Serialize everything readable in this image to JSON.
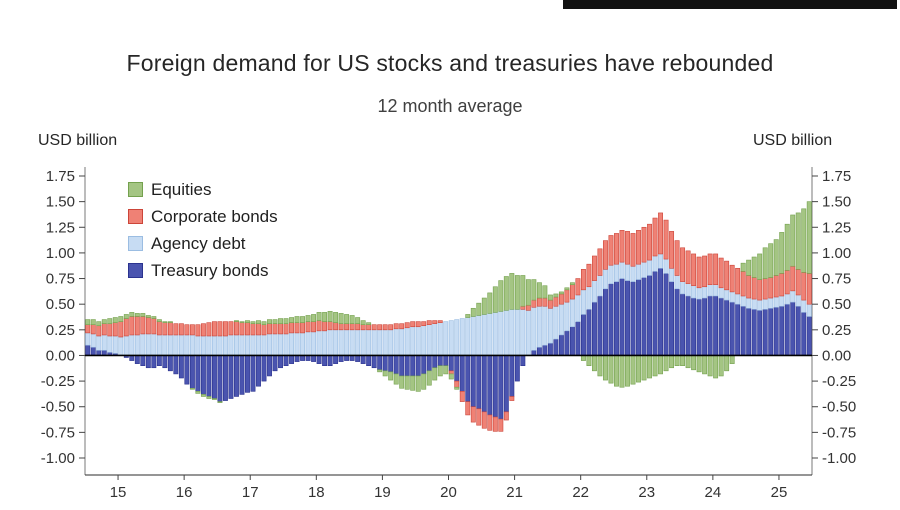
{
  "chart_data": {
    "type": "bar",
    "stacked": true,
    "title": "Foreign demand for US stocks and treasuries have rebounded",
    "subtitle": "12 month average",
    "ylabel_left": "USD billion",
    "ylabel_right": "USD billion",
    "ylim": [
      -1.0,
      1.75
    ],
    "ytick_step": 0.25,
    "grid": false,
    "zero_line": true,
    "zero_line_color": "#000000",
    "legend_position": "top-left",
    "x_start": "2014-07",
    "x_end": "2025-06",
    "frequency": "monthly",
    "x_range_decimal": [
      2014.5,
      2025.5
    ],
    "xtick_years": [
      2015,
      2016,
      2017,
      2018,
      2019,
      2020,
      2021,
      2022,
      2023,
      2024,
      2025
    ],
    "xtick_labels": [
      "15",
      "16",
      "17",
      "18",
      "19",
      "20",
      "21",
      "22",
      "23",
      "24",
      "25"
    ],
    "stack_order": [
      "Treasury bonds",
      "Agency debt",
      "Corporate bonds",
      "Equities"
    ],
    "series": [
      {
        "name": "Equities",
        "fill": "#a4c583",
        "stroke": "#74a14e",
        "values": [
          0.05,
          0.05,
          0.04,
          0.04,
          0.05,
          0.05,
          0.05,
          0.04,
          0.04,
          0.03,
          0.03,
          0.02,
          0.02,
          0.02,
          0.01,
          0.01,
          0.0,
          0.0,
          0.0,
          -0.01,
          -0.02,
          -0.02,
          -0.02,
          -0.01,
          -0.01,
          0.0,
          0.0,
          0.01,
          0.01,
          0.02,
          0.02,
          0.03,
          0.03,
          0.04,
          0.04,
          0.05,
          0.05,
          0.05,
          0.06,
          0.06,
          0.06,
          0.07,
          0.08,
          0.09,
          0.1,
          0.1,
          0.1,
          0.09,
          0.08,
          0.06,
          0.04,
          0.02,
          0.0,
          -0.02,
          -0.05,
          -0.08,
          -0.1,
          -0.12,
          -0.13,
          -0.14,
          -0.15,
          -0.15,
          -0.14,
          -0.12,
          -0.1,
          -0.08,
          -0.05,
          -0.02,
          0.0,
          0.03,
          0.08,
          0.12,
          0.16,
          0.2,
          0.25,
          0.3,
          0.33,
          0.35,
          0.33,
          0.3,
          0.25,
          0.2,
          0.15,
          0.12,
          0.05,
          0.03,
          0.02,
          0.02,
          0.02,
          0.0,
          -0.05,
          -0.1,
          -0.15,
          -0.2,
          -0.24,
          -0.27,
          -0.3,
          -0.31,
          -0.3,
          -0.28,
          -0.26,
          -0.24,
          -0.22,
          -0.2,
          -0.18,
          -0.15,
          -0.12,
          -0.1,
          -0.1,
          -0.12,
          -0.14,
          -0.16,
          -0.18,
          -0.2,
          -0.22,
          -0.2,
          -0.15,
          -0.08,
          0.0,
          0.08,
          0.15,
          0.2,
          0.25,
          0.3,
          0.33,
          0.35,
          0.4,
          0.45,
          0.5,
          0.55,
          0.62,
          0.7
        ]
      },
      {
        "name": "Corporate bonds",
        "fill": "#ef8175",
        "stroke": "#cc4539",
        "values": [
          0.08,
          0.09,
          0.1,
          0.11,
          0.12,
          0.13,
          0.15,
          0.17,
          0.18,
          0.18,
          0.17,
          0.16,
          0.15,
          0.13,
          0.12,
          0.12,
          0.11,
          0.11,
          0.1,
          0.1,
          0.11,
          0.12,
          0.13,
          0.14,
          0.14,
          0.14,
          0.13,
          0.13,
          0.12,
          0.12,
          0.11,
          0.11,
          0.1,
          0.1,
          0.1,
          0.1,
          0.1,
          0.1,
          0.1,
          0.1,
          0.1,
          0.1,
          0.1,
          0.09,
          0.08,
          0.07,
          0.06,
          0.06,
          0.06,
          0.06,
          0.05,
          0.05,
          0.05,
          0.05,
          0.05,
          0.05,
          0.05,
          0.05,
          0.05,
          0.05,
          0.05,
          0.04,
          0.04,
          0.03,
          0.02,
          0.0,
          -0.03,
          -0.06,
          -0.1,
          -0.13,
          -0.15,
          -0.16,
          -0.16,
          -0.15,
          -0.14,
          -0.12,
          -0.08,
          -0.04,
          0.0,
          0.03,
          0.05,
          0.07,
          0.08,
          0.08,
          0.08,
          0.09,
          0.1,
          0.12,
          0.14,
          0.16,
          0.2,
          0.22,
          0.24,
          0.26,
          0.28,
          0.29,
          0.3,
          0.31,
          0.32,
          0.32,
          0.33,
          0.34,
          0.35,
          0.37,
          0.4,
          0.38,
          0.36,
          0.34,
          0.33,
          0.32,
          0.31,
          0.3,
          0.3,
          0.3,
          0.3,
          0.29,
          0.28,
          0.26,
          0.25,
          0.24,
          0.22,
          0.21,
          0.2,
          0.2,
          0.2,
          0.21,
          0.22,
          0.23,
          0.24,
          0.25,
          0.27,
          0.3
        ]
      },
      {
        "name": "Agency debt",
        "fill": "#c7dcf3",
        "stroke": "#9bbde2",
        "values": [
          0.12,
          0.13,
          0.14,
          0.15,
          0.16,
          0.17,
          0.18,
          0.19,
          0.2,
          0.2,
          0.21,
          0.21,
          0.21,
          0.2,
          0.2,
          0.2,
          0.2,
          0.2,
          0.2,
          0.2,
          0.19,
          0.19,
          0.19,
          0.19,
          0.19,
          0.19,
          0.2,
          0.2,
          0.2,
          0.2,
          0.2,
          0.2,
          0.2,
          0.21,
          0.21,
          0.21,
          0.21,
          0.22,
          0.22,
          0.22,
          0.23,
          0.23,
          0.24,
          0.24,
          0.25,
          0.25,
          0.25,
          0.25,
          0.25,
          0.25,
          0.25,
          0.25,
          0.25,
          0.25,
          0.25,
          0.25,
          0.26,
          0.26,
          0.27,
          0.28,
          0.28,
          0.29,
          0.3,
          0.31,
          0.32,
          0.33,
          0.34,
          0.35,
          0.36,
          0.37,
          0.38,
          0.39,
          0.4,
          0.41,
          0.42,
          0.43,
          0.44,
          0.45,
          0.45,
          0.45,
          0.44,
          0.42,
          0.4,
          0.38,
          0.34,
          0.32,
          0.3,
          0.28,
          0.27,
          0.26,
          0.24,
          0.22,
          0.21,
          0.2,
          0.19,
          0.18,
          0.17,
          0.16,
          0.16,
          0.15,
          0.15,
          0.15,
          0.15,
          0.15,
          0.14,
          0.14,
          0.13,
          0.13,
          0.12,
          0.12,
          0.12,
          0.11,
          0.11,
          0.11,
          0.11,
          0.1,
          0.1,
          0.1,
          0.1,
          0.1,
          0.1,
          0.1,
          0.1,
          0.1,
          0.1,
          0.1,
          0.1,
          0.1,
          0.11,
          0.11,
          0.12,
          0.12
        ]
      },
      {
        "name": "Treasury bonds",
        "fill": "#4a54af",
        "stroke": "#2b338f",
        "values": [
          0.1,
          0.08,
          0.05,
          0.05,
          0.03,
          0.02,
          0.0,
          -0.02,
          -0.05,
          -0.08,
          -0.1,
          -0.12,
          -0.12,
          -0.1,
          -0.12,
          -0.15,
          -0.18,
          -0.22,
          -0.28,
          -0.32,
          -0.35,
          -0.38,
          -0.4,
          -0.42,
          -0.45,
          -0.44,
          -0.42,
          -0.4,
          -0.38,
          -0.36,
          -0.35,
          -0.3,
          -0.25,
          -0.2,
          -0.15,
          -0.12,
          -0.1,
          -0.08,
          -0.06,
          -0.05,
          -0.05,
          -0.06,
          -0.08,
          -0.1,
          -0.1,
          -0.08,
          -0.06,
          -0.05,
          -0.05,
          -0.06,
          -0.08,
          -0.1,
          -0.12,
          -0.14,
          -0.15,
          -0.16,
          -0.18,
          -0.2,
          -0.2,
          -0.2,
          -0.2,
          -0.18,
          -0.15,
          -0.12,
          -0.1,
          -0.1,
          -0.15,
          -0.25,
          -0.35,
          -0.45,
          -0.5,
          -0.52,
          -0.55,
          -0.58,
          -0.6,
          -0.62,
          -0.55,
          -0.4,
          -0.25,
          -0.1,
          0.0,
          0.05,
          0.08,
          0.1,
          0.12,
          0.16,
          0.2,
          0.24,
          0.28,
          0.33,
          0.4,
          0.45,
          0.52,
          0.58,
          0.65,
          0.7,
          0.72,
          0.75,
          0.73,
          0.72,
          0.74,
          0.76,
          0.78,
          0.82,
          0.85,
          0.8,
          0.72,
          0.65,
          0.6,
          0.58,
          0.56,
          0.55,
          0.56,
          0.58,
          0.58,
          0.56,
          0.54,
          0.52,
          0.5,
          0.48,
          0.46,
          0.45,
          0.44,
          0.45,
          0.46,
          0.47,
          0.48,
          0.5,
          0.52,
          0.48,
          0.42,
          0.38
        ]
      }
    ]
  }
}
